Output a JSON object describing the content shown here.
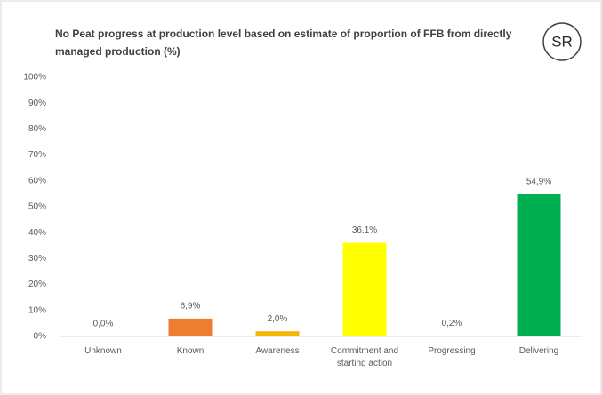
{
  "chart_data": {
    "type": "bar",
    "title": "No Peat progress at production level based on estimate of proportion of FFB from directly managed production (%)",
    "badge": "SR",
    "categories": [
      "Unknown",
      "Known",
      "Awareness",
      "Commitment and starting action",
      "Progressing",
      "Delivering"
    ],
    "values": [
      0.0,
      6.9,
      2.0,
      36.1,
      0.2,
      54.9
    ],
    "value_labels": [
      "0,0%",
      "6,9%",
      "2,0%",
      "36,1%",
      "0,2%",
      "54,9%"
    ],
    "colors": [
      "#a5a5a5",
      "#ed7d31",
      "#f4b800",
      "#ffff00",
      "#92d050",
      "#00b050"
    ],
    "ylim": [
      0,
      100
    ],
    "yticks": [
      {
        "value": 0,
        "label": "0%"
      },
      {
        "value": 10,
        "label": "10%"
      },
      {
        "value": 20,
        "label": "20%"
      },
      {
        "value": 30,
        "label": "30%"
      },
      {
        "value": 40,
        "label": "40%"
      },
      {
        "value": 50,
        "label": "50%"
      },
      {
        "value": 60,
        "label": "60%"
      },
      {
        "value": 70,
        "label": "70%"
      },
      {
        "value": 80,
        "label": "80%"
      },
      {
        "value": 90,
        "label": "90%"
      },
      {
        "value": 100,
        "label": "100%"
      }
    ],
    "grid": false
  }
}
